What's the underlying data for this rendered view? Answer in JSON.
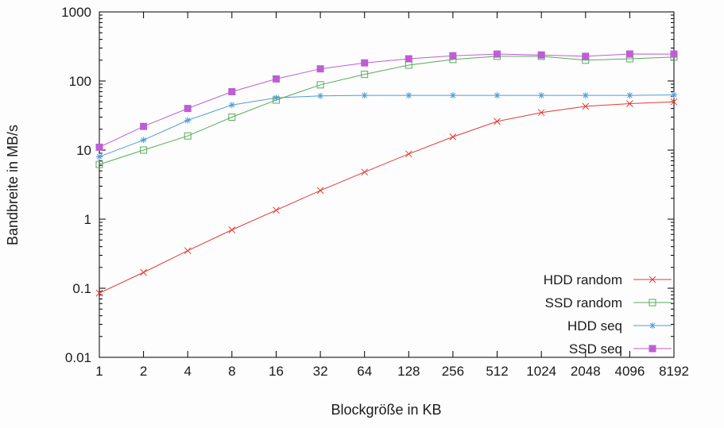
{
  "chart_data": {
    "type": "line",
    "title": "",
    "xlabel": "Blockgröße in KB",
    "ylabel": "Bandbreite in MB/s",
    "x_scale": "log2",
    "y_scale": "log10",
    "x_categories": [
      1,
      2,
      4,
      8,
      16,
      32,
      64,
      128,
      256,
      512,
      1024,
      2048,
      4096,
      8192
    ],
    "x_tick_labels": [
      "1",
      "2",
      "4",
      "8",
      "16",
      "32",
      "64",
      "128",
      "256",
      "512",
      "1024",
      "2048",
      "4096",
      "8192"
    ],
    "y_ticks": [
      0.01,
      0.1,
      1,
      10,
      100,
      1000
    ],
    "y_tick_labels": [
      "0.01",
      "0.1",
      "1",
      "10",
      "100",
      "1000"
    ],
    "y_range": [
      0.01,
      1000
    ],
    "grid": false,
    "legend_position": "inside-bottom-right",
    "background_color": "#fdfdfd",
    "border_color": "#000000",
    "text_color": "#1a1a1a",
    "series": [
      {
        "name": "HDD random",
        "color": "#e03c36",
        "marker": "cross",
        "values": [
          0.085,
          0.17,
          0.35,
          0.7,
          1.35,
          2.6,
          4.8,
          8.8,
          15.5,
          26,
          35,
          43,
          47,
          50
        ]
      },
      {
        "name": "SSD random",
        "color": "#57ab5a",
        "marker": "open-square",
        "values": [
          6.2,
          10,
          16,
          30,
          53,
          88,
          125,
          170,
          205,
          228,
          228,
          200,
          210,
          222
        ]
      },
      {
        "name": "HDD seq",
        "color": "#4f9dd9",
        "marker": "asterisk",
        "values": [
          8,
          14,
          27,
          45,
          57,
          61,
          62,
          62,
          62,
          62,
          62,
          62,
          62,
          63
        ]
      },
      {
        "name": "SSD seq",
        "color": "#bc5fd3",
        "marker": "filled-square",
        "values": [
          11,
          22,
          40,
          70,
          107,
          150,
          183,
          210,
          232,
          245,
          238,
          228,
          246,
          245
        ]
      }
    ]
  }
}
